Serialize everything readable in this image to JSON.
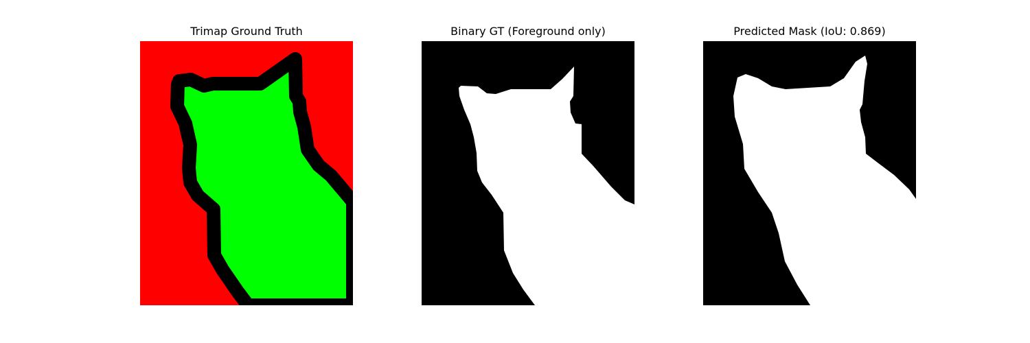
{
  "figure": {
    "panels": [
      {
        "title": "Trimap Ground Truth",
        "colors": {
          "background": "#ff0000",
          "foreground": "#00ff00",
          "unknown": "#000000"
        }
      },
      {
        "title": "Binary GT (Foreground only)",
        "colors": {
          "background": "#000000",
          "foreground": "#ffffff"
        }
      },
      {
        "title": "Predicted Mask (IoU: 0.869)",
        "colors": {
          "background": "#000000",
          "foreground": "#ffffff"
        }
      }
    ]
  }
}
